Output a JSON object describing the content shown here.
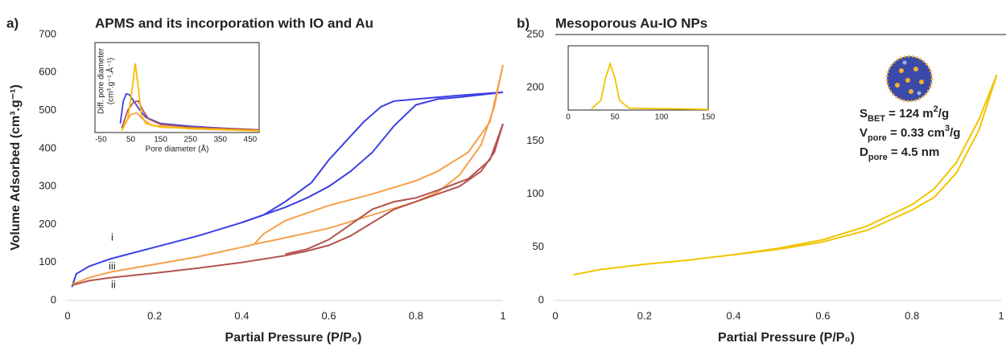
{
  "chart_data": [
    {
      "type": "line",
      "panel_label": "a)",
      "title": "APMS and its incorporation with IO and Au",
      "xlabel": "Partial Pressure (P/P₀)",
      "ylabel": "Volume Adsorbed (cm³.g⁻¹)",
      "xlim": [
        0,
        1
      ],
      "xticks": [
        0,
        0.2,
        0.4,
        0.6,
        0.8,
        1
      ],
      "ylim": [
        0,
        700
      ],
      "yticks": [
        0,
        100,
        200,
        300,
        400,
        500,
        600,
        700
      ],
      "annotations": [
        "i",
        "iii",
        "ii"
      ],
      "series": [
        {
          "color": "#3b3fe3",
          "x": [
            0.01,
            0.02,
            0.05,
            0.1,
            0.2,
            0.3,
            0.4,
            0.5,
            0.55,
            0.6,
            0.65,
            0.7,
            0.75,
            0.8,
            0.85,
            0.9,
            1
          ],
          "values": [
            35,
            70,
            90,
            110,
            140,
            170,
            205,
            245,
            270,
            300,
            340,
            390,
            460,
            515,
            530,
            535,
            548
          ]
        },
        {
          "color": "#3b3fe3",
          "x": [
            1,
            0.9,
            0.8,
            0.75,
            0.72,
            0.68,
            0.64,
            0.6,
            0.56,
            0.5,
            0.45,
            0.4
          ],
          "values": [
            548,
            540,
            530,
            525,
            510,
            470,
            420,
            370,
            310,
            260,
            225,
            205
          ]
        },
        {
          "color": "#f4a04c",
          "x": [
            0.01,
            0.05,
            0.1,
            0.2,
            0.3,
            0.4,
            0.43,
            0.5,
            0.6,
            0.7,
            0.8,
            0.85,
            0.9,
            0.95,
            0.98,
            1
          ],
          "values": [
            42,
            60,
            75,
            95,
            115,
            140,
            148,
            165,
            190,
            225,
            260,
            285,
            330,
            410,
            510,
            620
          ]
        },
        {
          "color": "#f4a04c",
          "x": [
            1,
            0.97,
            0.92,
            0.85,
            0.8,
            0.7,
            0.6,
            0.5,
            0.45,
            0.43
          ],
          "values": [
            620,
            470,
            390,
            340,
            315,
            280,
            250,
            210,
            175,
            150
          ]
        },
        {
          "color": "#b4534f",
          "x": [
            0.01,
            0.05,
            0.1,
            0.2,
            0.3,
            0.4,
            0.5,
            0.55,
            0.6,
            0.65,
            0.7,
            0.75,
            0.8,
            0.85,
            0.9,
            0.95,
            0.98,
            1
          ],
          "values": [
            40,
            52,
            60,
            72,
            85,
            100,
            118,
            130,
            145,
            170,
            205,
            240,
            260,
            280,
            300,
            340,
            390,
            465
          ]
        },
        {
          "color": "#b4534f",
          "x": [
            1,
            0.97,
            0.92,
            0.85,
            0.8,
            0.75,
            0.7,
            0.65,
            0.6,
            0.55,
            0.5
          ],
          "values": [
            465,
            370,
            320,
            290,
            270,
            260,
            240,
            200,
            160,
            135,
            122
          ]
        }
      ]
    },
    {
      "type": "line",
      "frame": true,
      "xlabel": "Pore diameter (Å)",
      "ylabel": [
        "Diff. pore diameter",
        "(cm³.g⁻¹.Å⁻¹)"
      ],
      "xlim": [
        -70,
        480
      ],
      "xticks": [
        -50,
        50,
        150,
        250,
        350,
        450
      ],
      "ylim": [
        0,
        1
      ],
      "series": [
        {
          "color": "#3b3fe3",
          "x": [
            15,
            25,
            35,
            45,
            60,
            80,
            100,
            150,
            250,
            350,
            480
          ],
          "values": [
            0.1,
            0.35,
            0.43,
            0.42,
            0.35,
            0.25,
            0.17,
            0.1,
            0.07,
            0.05,
            0.03
          ]
        },
        {
          "color": "#b4534f",
          "x": [
            20,
            40,
            60,
            75,
            90,
            110,
            150,
            250,
            480
          ],
          "values": [
            0.05,
            0.25,
            0.34,
            0.35,
            0.25,
            0.15,
            0.09,
            0.06,
            0.03
          ]
        },
        {
          "color": "#f4a04c",
          "x": [
            30,
            50,
            70,
            90,
            120,
            250,
            480
          ],
          "values": [
            0.1,
            0.2,
            0.22,
            0.15,
            0.08,
            0.04,
            0.02
          ]
        },
        {
          "color": "#f9bb00",
          "x": [
            20,
            40,
            55,
            65,
            75,
            85,
            100,
            150,
            480
          ],
          "values": [
            0.02,
            0.15,
            0.5,
            0.77,
            0.5,
            0.2,
            0.1,
            0.06,
            0.02
          ]
        }
      ]
    },
    {
      "type": "line",
      "frame": true,
      "panel_label": "b)",
      "title": "Mesoporous Au-IO NPs",
      "xlabel": "Partial Pressure (P/P₀)",
      "xlim": [
        0,
        1
      ],
      "xticks": [
        0,
        0.2,
        0.4,
        0.6,
        0.8,
        1
      ],
      "ylim": [
        0,
        250
      ],
      "yticks": [
        0,
        50,
        100,
        150,
        200,
        250
      ],
      "annotations": [
        [
          {
            "t": "S"
          },
          {
            "t": "BET",
            "style": "sub"
          },
          {
            "t": " = 124 m"
          },
          {
            "t": "2",
            "style": "super"
          },
          {
            "t": "/g"
          }
        ],
        [
          {
            "t": "V"
          },
          {
            "t": "pore",
            "style": "sub"
          },
          {
            "t": " = 0.33 cm"
          },
          {
            "t": "3",
            "style": "super"
          },
          {
            "t": "/g"
          }
        ],
        [
          {
            "t": "D"
          },
          {
            "t": "pore",
            "style": "sub"
          },
          {
            "t": " = 4.5 nm"
          }
        ]
      ],
      "series": [
        {
          "color": "#f2c400",
          "x": [
            0.04,
            0.1,
            0.2,
            0.3,
            0.4,
            0.5,
            0.6,
            0.7,
            0.8,
            0.85,
            0.9,
            0.95,
            0.99
          ],
          "values": [
            24,
            29,
            34,
            38,
            43,
            49,
            57,
            70,
            90,
            105,
            130,
            170,
            212
          ]
        },
        {
          "color": "#f2c400",
          "x": [
            0.99,
            0.95,
            0.9,
            0.85,
            0.8,
            0.7,
            0.6,
            0.5,
            0.4
          ],
          "values": [
            212,
            160,
            120,
            97,
            85,
            66,
            55,
            48,
            43
          ]
        }
      ]
    },
    {
      "type": "line",
      "frame": true,
      "xlim": [
        0,
        150
      ],
      "xticks": [
        0,
        50,
        100,
        150
      ],
      "ylim": [
        0,
        1
      ],
      "series": [
        {
          "color": "#f2c400",
          "x": [
            25,
            35,
            40,
            45,
            50,
            55,
            65,
            150
          ],
          "values": [
            0.02,
            0.15,
            0.5,
            0.72,
            0.5,
            0.15,
            0.03,
            0.01
          ]
        }
      ]
    }
  ]
}
